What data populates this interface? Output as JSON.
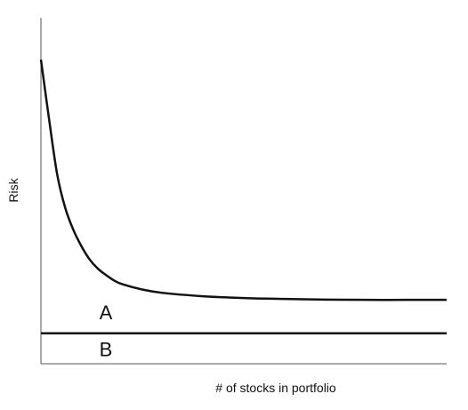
{
  "chart_data": {
    "type": "line",
    "title": "",
    "xlabel": "# of stocks in portfolio",
    "ylabel": "Risk",
    "grid": false,
    "legend": "none",
    "xlim": [
      0,
      100
    ],
    "ylim": [
      0,
      100
    ],
    "series": [
      {
        "x": [
          0,
          2,
          4,
          6,
          8,
          10,
          12,
          14,
          16,
          18,
          20,
          25,
          30,
          40,
          50,
          60,
          70,
          80,
          90,
          100
        ],
        "y": [
          100,
          80.5,
          62.3,
          51.2,
          44.0,
          38.6,
          34.3,
          31.3,
          29.2,
          27.4,
          26.2,
          24.4,
          23.3,
          22.2,
          21.6,
          21.3,
          21.1,
          21.0,
          21.0,
          21.0
        ]
      },
      {
        "x": [
          0,
          100
        ],
        "y": [
          10,
          10
        ]
      }
    ],
    "annotations": [
      {
        "text": "A",
        "x": 16,
        "y": 16.3
      },
      {
        "text": "B",
        "x": 16,
        "y": 4.2
      }
    ],
    "colors": {
      "line": "#111111",
      "axis": "#555555"
    }
  }
}
